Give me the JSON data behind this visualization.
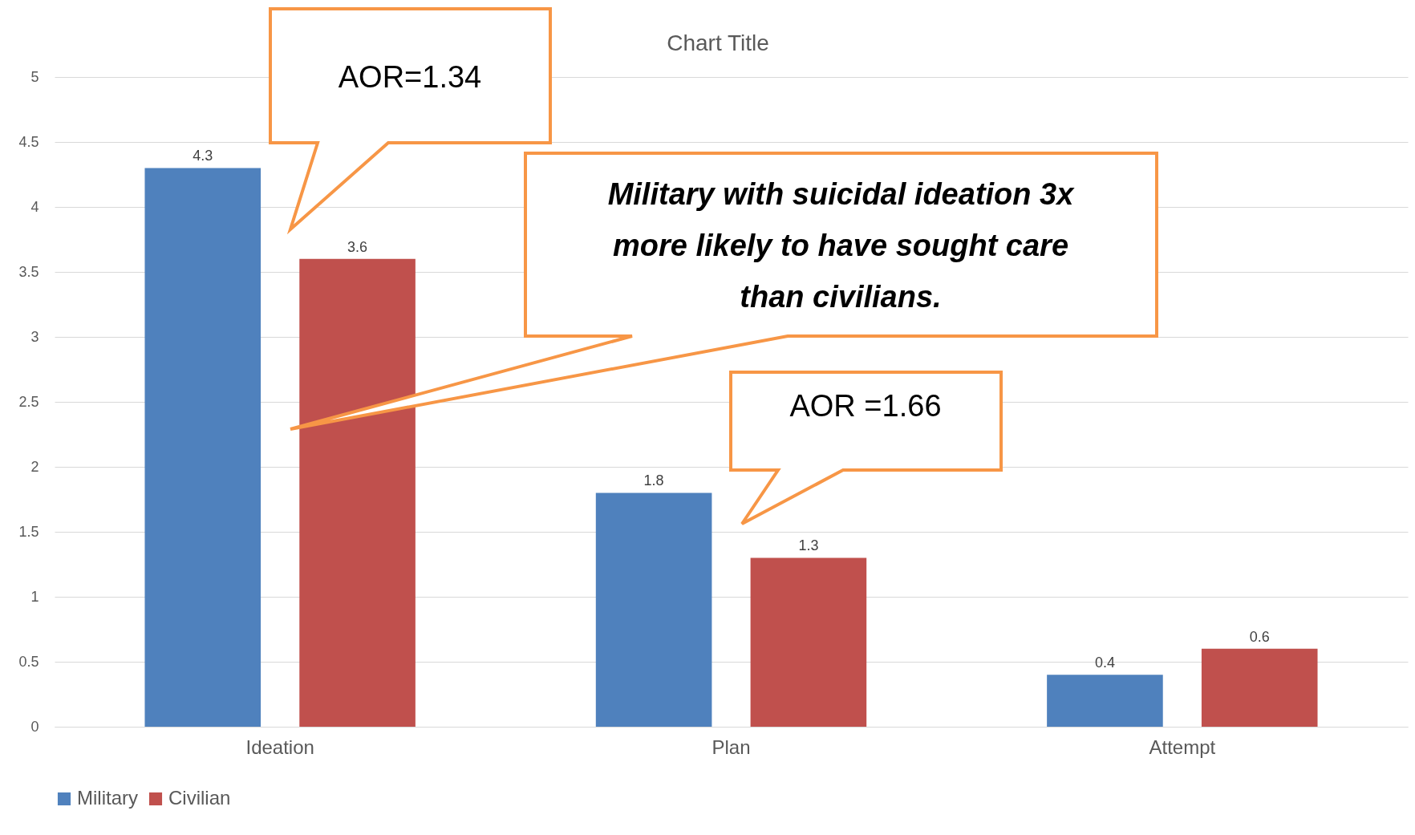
{
  "chart_data": {
    "type": "bar",
    "title": "Chart Title",
    "categories": [
      "Ideation",
      "Plan",
      "Attempt"
    ],
    "series": [
      {
        "name": "Military",
        "color": "#4f81bd",
        "values": [
          4.3,
          1.8,
          0.4
        ]
      },
      {
        "name": "Civilian",
        "color": "#c0504d",
        "values": [
          3.6,
          1.3,
          0.6
        ]
      }
    ],
    "ylim": [
      0,
      5
    ],
    "yticks": [
      0,
      0.5,
      1,
      1.5,
      2,
      2.5,
      3,
      3.5,
      4,
      4.5,
      5
    ],
    "grid": "y",
    "legend": "bottom",
    "data_labels": true,
    "annotations": [
      "AOR=1.34",
      "Military with suicidal ideation 3x more likely to have sought care than civilians.",
      "AOR =1.66"
    ]
  }
}
